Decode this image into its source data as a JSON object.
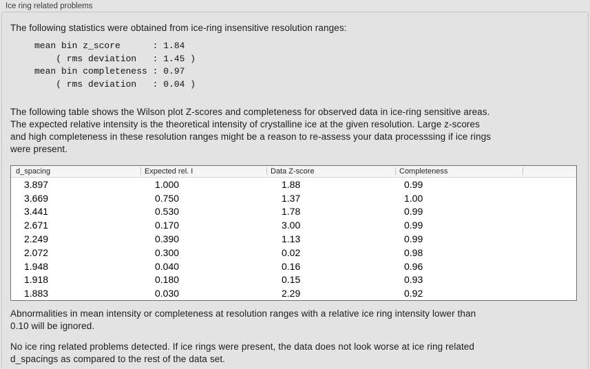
{
  "section": {
    "title": "Ice ring related problems"
  },
  "intro_text": "The following statistics were obtained from ice-ring insensitive resolution ranges:",
  "stats_block": "mean bin z_score      : 1.84\n    ( rms deviation   : 1.45 )\nmean bin completeness : 0.97\n    ( rms deviation   : 0.04 )",
  "stats": {
    "mean_bin_z_score": "1.84",
    "z_score_rms_deviation": "1.45",
    "mean_bin_completeness": "0.97",
    "completeness_rms_deviation": "0.04"
  },
  "table_description": "The following table shows the Wilson plot Z-scores and completeness for observed data in ice-ring sensitive areas.\nThe expected relative intensity is the theoretical intensity of crystalline ice at the given resolution. Large z-scores\nand high completeness in these resolution ranges might be a reason to re-assess your data processsing if ice rings\nwere present.",
  "table": {
    "columns": [
      "d_spacing",
      "Expected rel. I",
      "Data Z-score",
      "Completeness"
    ],
    "rows": [
      [
        "3.897",
        "1.000",
        "1.88",
        "0.99"
      ],
      [
        "3.669",
        "0.750",
        "1.37",
        "1.00"
      ],
      [
        "3.441",
        "0.530",
        "1.78",
        "0.99"
      ],
      [
        "2.671",
        "0.170",
        "3.00",
        "0.99"
      ],
      [
        "2.249",
        "0.390",
        "1.13",
        "0.99"
      ],
      [
        "2.072",
        "0.300",
        "0.02",
        "0.98"
      ],
      [
        "1.948",
        "0.040",
        "0.16",
        "0.96"
      ],
      [
        "1.918",
        "0.180",
        "0.15",
        "0.93"
      ],
      [
        "1.883",
        "0.030",
        "2.29",
        "0.92"
      ]
    ]
  },
  "ignore_note": "Abnormalities in mean intensity or completeness at resolution ranges with a relative ice ring intensity lower than\n0.10 will be ignored.",
  "conclusion": "No ice ring related problems detected. If ice rings were present, the data does not look worse at ice ring related\nd_spacings as compared to the rest of the data set.",
  "colors": {
    "page_bg": "#e4e4e4",
    "panel_bg": "#e3e3e3",
    "panel_border": "#c6c6c6",
    "table_bg": "#ffffff",
    "header_bg": "#f5f5f5",
    "text": "#1c1c1c"
  }
}
